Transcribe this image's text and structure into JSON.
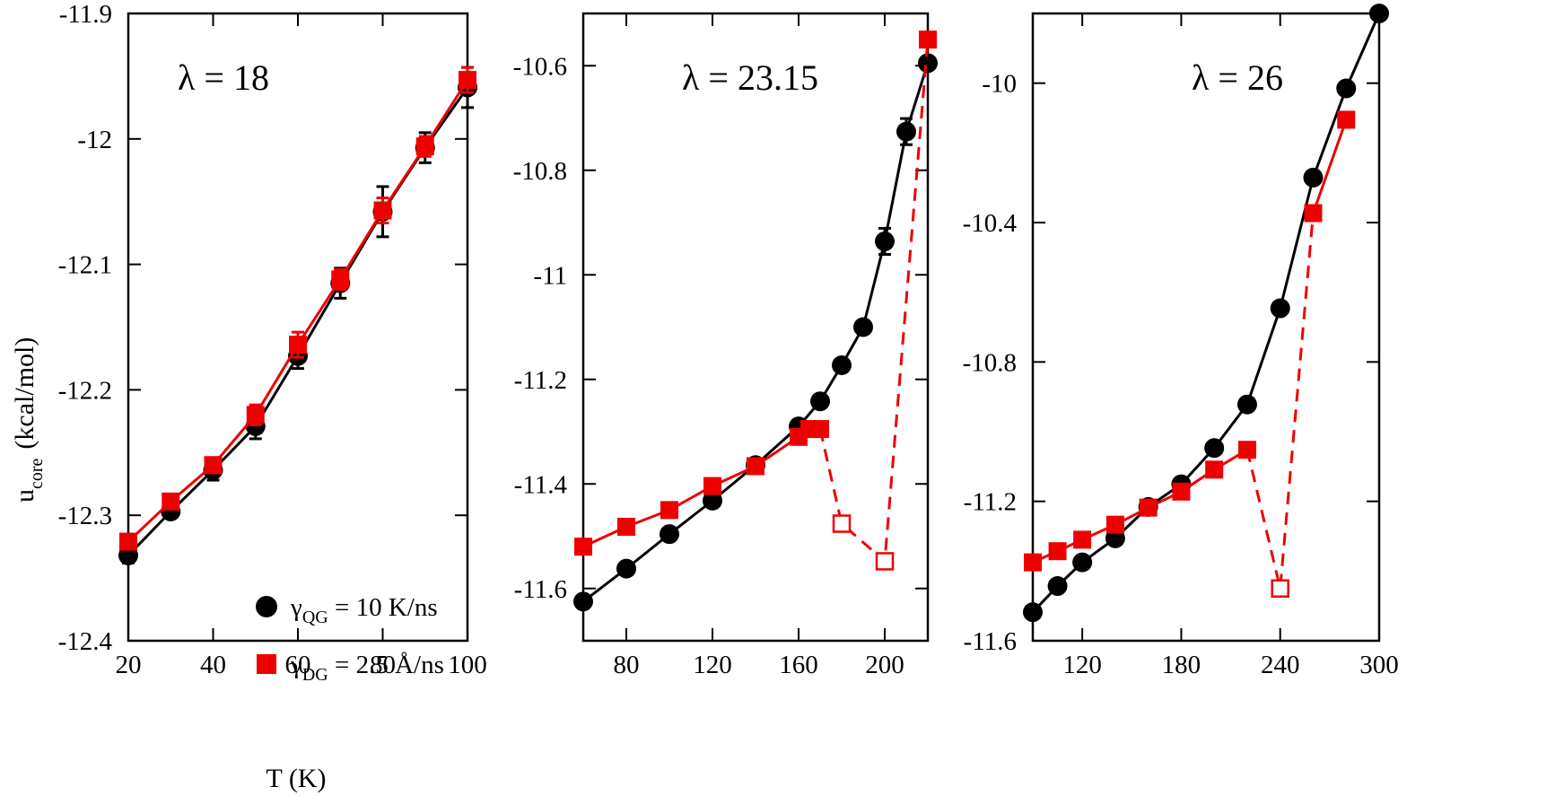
{
  "chart_data": [
    {
      "type": "line",
      "panel_label": "λ = 18",
      "xlabel": "T  (K)",
      "ylabel_main": "u",
      "ylabel_sub": "core",
      "ylabel_unit": "(kcal/mol)",
      "xlim": [
        20,
        100
      ],
      "ylim": [
        -12.4,
        -11.9
      ],
      "xticks": [
        20,
        40,
        60,
        80,
        100
      ],
      "yticks": [
        -12.4,
        -12.3,
        -12.2,
        -12.1,
        -12,
        -11.9
      ],
      "yticklabels": [
        "-12.4",
        "-12.3",
        "-12.2",
        "-12.1",
        "-12",
        "-11.9"
      ],
      "series": [
        {
          "name": "QG",
          "color": "#000000",
          "marker": "circle",
          "x": [
            20,
            30,
            40,
            50,
            60,
            70,
            80,
            90,
            100
          ],
          "y": [
            -12.332,
            -12.297,
            -12.264,
            -12.229,
            -12.173,
            -12.115,
            -12.058,
            -12.007,
            -11.959
          ],
          "err": [
            0.006,
            0.004,
            0.008,
            0.01,
            0.01,
            0.012,
            0.02,
            0.012,
            0.016
          ]
        },
        {
          "name": "DG",
          "color": "#ee0000",
          "marker": "square",
          "x": [
            20,
            30,
            40,
            50,
            60,
            70,
            80,
            90,
            100
          ],
          "y": [
            -12.321,
            -12.289,
            -12.26,
            -12.22,
            -12.164,
            -12.112,
            -12.057,
            -12.006,
            -11.953
          ],
          "err": [
            0.004,
            0.004,
            0.006,
            0.008,
            0.01,
            0.008,
            0.01,
            0.008,
            0.01
          ]
        }
      ],
      "legend": {
        "position": "bottom-right",
        "entries": [
          {
            "symbol": "γ",
            "sub": "QG",
            "text": " = 10 K/ns",
            "color": "#000000",
            "marker": "circle"
          },
          {
            "symbol": "γ",
            "sub": "DG",
            "text": " = 2.5 Å/ns",
            "color": "#ee0000",
            "marker": "square"
          }
        ]
      }
    },
    {
      "type": "line",
      "panel_label": "λ = 23.15",
      "xlim": [
        60,
        220
      ],
      "ylim": [
        -11.7,
        -10.5
      ],
      "xticks": [
        80,
        120,
        160,
        200
      ],
      "yticks": [
        -11.6,
        -11.4,
        -11.2,
        -11,
        -10.8,
        -10.6
      ],
      "yticklabels": [
        "-11.6",
        "-11.4",
        "-11.2",
        "-11",
        "-10.8",
        "-10.6"
      ],
      "series": [
        {
          "name": "QG",
          "color": "#000000",
          "marker": "circle",
          "x": [
            60,
            80,
            100,
            120,
            140,
            160,
            170,
            180,
            190,
            200,
            210,
            220
          ],
          "y": [
            -11.625,
            -11.562,
            -11.496,
            -11.432,
            -11.364,
            -11.29,
            -11.242,
            -11.173,
            -11.1,
            -10.936,
            -10.726,
            -10.595
          ],
          "err": [
            0,
            0,
            0,
            0,
            0,
            0,
            0,
            0,
            0.012,
            0.025,
            0.025,
            0
          ]
        },
        {
          "name": "DG",
          "color": "#ee0000",
          "marker": "square",
          "x": [
            60,
            80,
            100,
            120,
            140,
            160,
            165,
            170
          ],
          "y": [
            -11.52,
            -11.482,
            -11.45,
            -11.404,
            -11.366,
            -11.31,
            -11.295,
            -11.295
          ]
        },
        {
          "name": "DG unstable",
          "color": "#ee0000",
          "marker": "open-square",
          "dashed": true,
          "x": [
            170,
            180,
            200,
            220
          ],
          "y": [
            -11.295,
            -11.476,
            -11.548,
            -10.55
          ],
          "open_points": [
            1,
            2
          ],
          "filled_points": [
            3
          ]
        }
      ]
    },
    {
      "type": "line",
      "panel_label": "λ = 26",
      "xlim": [
        90,
        300
      ],
      "ylim": [
        -11.6,
        -9.8
      ],
      "xticks": [
        120,
        180,
        240,
        300
      ],
      "yticks": [
        -11.6,
        -11.2,
        -10.8,
        -10.4,
        -10
      ],
      "yticklabels": [
        "-11.6",
        "-11.2",
        "-10.8",
        "-10.4",
        "-10"
      ],
      "series": [
        {
          "name": "QG",
          "color": "#000000",
          "marker": "circle",
          "x": [
            90,
            105,
            120,
            140,
            160,
            180,
            200,
            220,
            240,
            260,
            280,
            300
          ],
          "y": [
            -11.518,
            -11.443,
            -11.375,
            -11.306,
            -11.216,
            -11.151,
            -11.047,
            -10.922,
            -10.646,
            -10.271,
            -10.015,
            -9.8
          ]
        },
        {
          "name": "DG",
          "color": "#ee0000",
          "marker": "square",
          "x": [
            90,
            105,
            120,
            140,
            160,
            180,
            200,
            220
          ],
          "y": [
            -11.375,
            -11.343,
            -11.31,
            -11.267,
            -11.218,
            -11.172,
            -11.109,
            -11.052
          ]
        },
        {
          "name": "DG unstable",
          "color": "#ee0000",
          "marker": "open-square",
          "dashed": true,
          "x": [
            220,
            240,
            260,
            280
          ],
          "y": [
            -11.052,
            -11.45,
            -10.373,
            -10.105
          ],
          "open_points": [
            1
          ],
          "filled_points": [
            2,
            3
          ],
          "solid_tail": true
        }
      ]
    }
  ]
}
